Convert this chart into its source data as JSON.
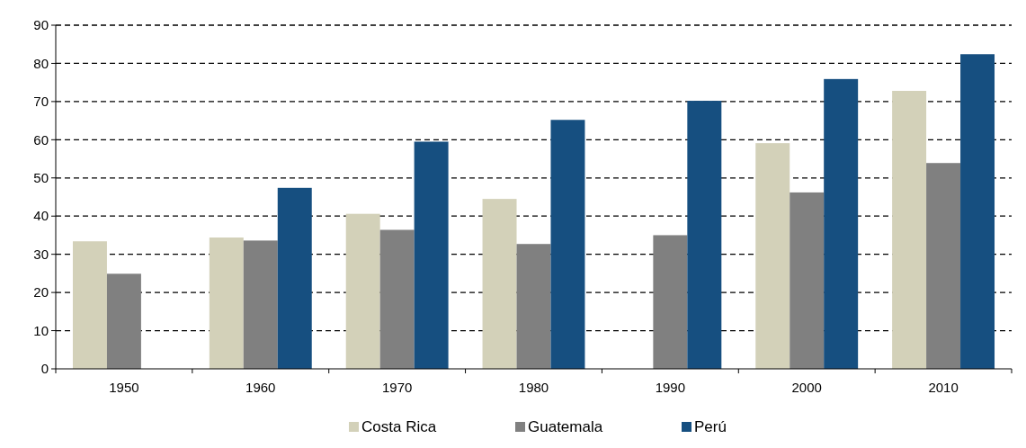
{
  "chart_data": {
    "type": "bar",
    "categories": [
      "1950",
      "1960",
      "1970",
      "1980",
      "1990",
      "2000",
      "2010"
    ],
    "series": [
      {
        "name": "Costa Rica",
        "color": "#d3d1b9",
        "values": [
          33.4,
          34.4,
          40.6,
          44.5,
          null,
          59.1,
          72.8
        ]
      },
      {
        "name": "Guatemala",
        "color": "#808080",
        "values": [
          24.9,
          33.6,
          36.4,
          32.7,
          35.0,
          46.2,
          53.9
        ]
      },
      {
        "name": "Perú",
        "color": "#164f80",
        "values": [
          null,
          47.4,
          59.5,
          65.2,
          70.2,
          75.9,
          82.4
        ]
      }
    ],
    "ylim": [
      0,
      90
    ],
    "yticks": [
      0,
      10,
      20,
      30,
      40,
      50,
      60,
      70,
      80,
      90
    ],
    "grid": "y",
    "legend": "bottom"
  }
}
